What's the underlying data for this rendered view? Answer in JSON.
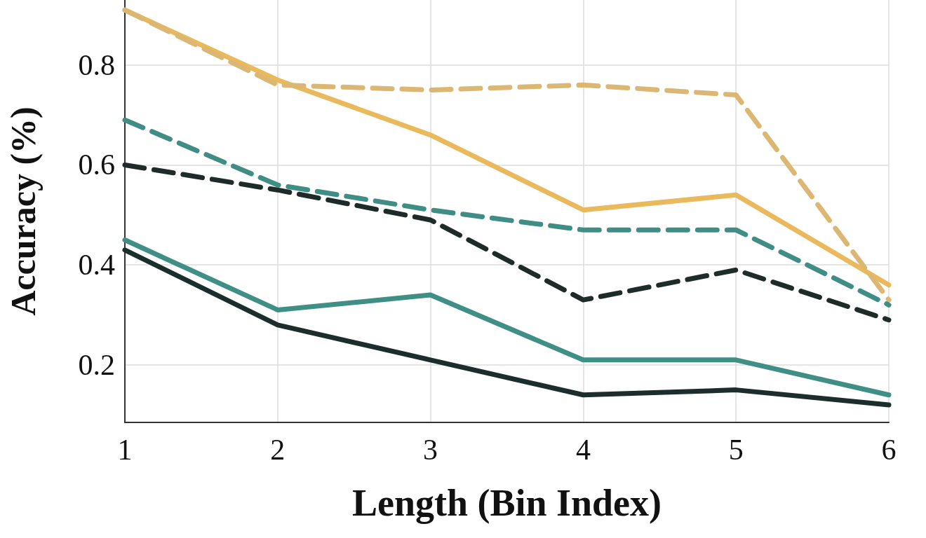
{
  "chart_data": {
    "type": "line",
    "xlabel": "Length (Bin Index)",
    "ylabel": "Accuracy (%)",
    "x": [
      1,
      2,
      3,
      4,
      5,
      6
    ],
    "xlim": [
      1,
      6
    ],
    "xticks": [
      1,
      2,
      3,
      4,
      5,
      6
    ],
    "ylim": [
      0.085,
      0.93
    ],
    "yticks": [
      0.2,
      0.4,
      0.6,
      0.8
    ],
    "grid": true,
    "marker": "none",
    "series": [
      {
        "color": "#e9b95c",
        "line_style": "solid",
        "values": [
          0.91,
          0.77,
          0.66,
          0.51,
          0.54,
          0.36
        ]
      },
      {
        "color": "#dbb773",
        "line_style": "dashed",
        "values": [
          0.91,
          0.76,
          0.75,
          0.76,
          0.74,
          0.33
        ]
      },
      {
        "color": "#3f8d85",
        "line_style": "dashed",
        "values": [
          0.69,
          0.56,
          0.51,
          0.47,
          0.47,
          0.32
        ]
      },
      {
        "color": "#1f2b29",
        "line_style": "dashed",
        "values": [
          0.6,
          0.55,
          0.49,
          0.33,
          0.39,
          0.29
        ]
      },
      {
        "color": "#3f8f86",
        "line_style": "solid",
        "values": [
          0.45,
          0.31,
          0.34,
          0.21,
          0.21,
          0.14
        ]
      },
      {
        "color": "#1c2e2c",
        "line_style": "solid",
        "values": [
          0.43,
          0.28,
          0.21,
          0.14,
          0.15,
          0.12
        ]
      }
    ]
  }
}
